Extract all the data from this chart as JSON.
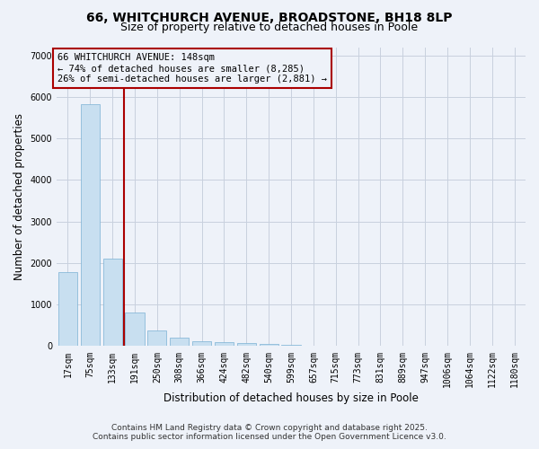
{
  "title_line1": "66, WHITCHURCH AVENUE, BROADSTONE, BH18 8LP",
  "title_line2": "Size of property relative to detached houses in Poole",
  "xlabel": "Distribution of detached houses by size in Poole",
  "ylabel": "Number of detached properties",
  "bar_color": "#c8dff0",
  "bar_edge_color": "#7ab0d4",
  "background_color": "#eef2f9",
  "grid_color": "#c8d0de",
  "categories": [
    "17sqm",
    "75sqm",
    "133sqm",
    "191sqm",
    "250sqm",
    "308sqm",
    "366sqm",
    "424sqm",
    "482sqm",
    "540sqm",
    "599sqm",
    "657sqm",
    "715sqm",
    "773sqm",
    "831sqm",
    "889sqm",
    "947sqm",
    "1006sqm",
    "1064sqm",
    "1122sqm",
    "1180sqm"
  ],
  "values": [
    1780,
    5820,
    2100,
    820,
    370,
    210,
    120,
    90,
    75,
    55,
    40,
    0,
    0,
    0,
    0,
    0,
    0,
    0,
    0,
    0,
    0
  ],
  "vline_pos": 2.5,
  "vline_color": "#aa0000",
  "annotation_text": "66 WHITCHURCH AVENUE: 148sqm\n← 74% of detached houses are smaller (8,285)\n26% of semi-detached houses are larger (2,881) →",
  "ylim": [
    0,
    7200
  ],
  "yticks": [
    0,
    1000,
    2000,
    3000,
    4000,
    5000,
    6000,
    7000
  ],
  "footer_line1": "Contains HM Land Registry data © Crown copyright and database right 2025.",
  "footer_line2": "Contains public sector information licensed under the Open Government Licence v3.0.",
  "title_fontsize": 10,
  "subtitle_fontsize": 9,
  "axis_label_fontsize": 8.5,
  "tick_fontsize": 7,
  "annotation_fontsize": 7.5,
  "footer_fontsize": 6.5
}
